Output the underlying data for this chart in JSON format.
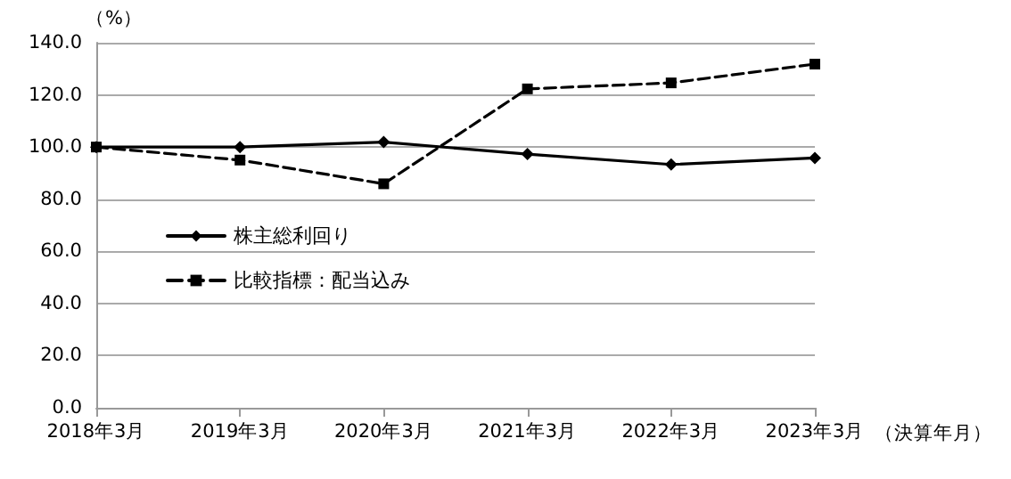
{
  "chart_data": {
    "type": "line",
    "xlabel": "（決算年月）",
    "ylabel": "（%）",
    "categories": [
      "2018年3月",
      "2019年3月",
      "2020年3月",
      "2021年3月",
      "2022年3月",
      "2023年3月"
    ],
    "series": [
      {
        "name": "株主総利回り",
        "color": "#000000",
        "values": [
          100,
          100,
          101.9,
          97.3,
          93.3,
          95.8
        ],
        "marker": "diamond",
        "line_style": "solid"
      },
      {
        "name": "比較指標：配当込み",
        "color": "#000000",
        "values": [
          100,
          95,
          85.9,
          122.3,
          124.6,
          131.8
        ],
        "marker": "square",
        "line_style": "dashed"
      }
    ],
    "ylim": [
      0,
      140
    ],
    "yticks": [
      {
        "value": 0,
        "label": "0.0"
      },
      {
        "value": 20,
        "label": "20.0"
      },
      {
        "value": 40,
        "label": "40.0"
      },
      {
        "value": 60,
        "label": "60.0"
      },
      {
        "value": 80,
        "label": "80.0"
      },
      {
        "value": 100,
        "label": "100.0"
      },
      {
        "value": 120,
        "label": "120.0"
      },
      {
        "value": 140,
        "label": "140.0"
      }
    ],
    "grid": "y",
    "legend": "center left"
  }
}
